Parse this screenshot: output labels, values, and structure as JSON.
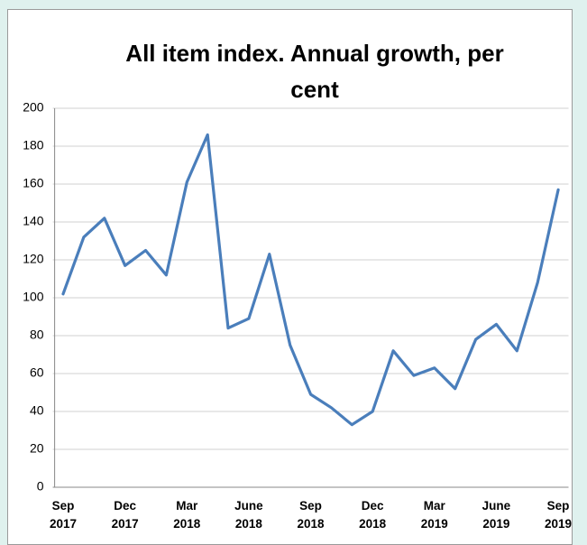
{
  "chart_data": {
    "type": "line",
    "title": "All item index. Annual growth, per cent",
    "categories": [
      "Sep 2017",
      null,
      null,
      "Dec 2017",
      null,
      null,
      "Mar 2018",
      null,
      null,
      "June 2018",
      null,
      null,
      "Sep 2018",
      null,
      null,
      "Dec 2018",
      null,
      null,
      "Mar 2019",
      null,
      null,
      "June 2019",
      null,
      null,
      "Sep 2019"
    ],
    "series": [
      {
        "name": "All item index",
        "color": "#4a7ebb",
        "values": [
          102,
          132,
          142,
          117,
          125,
          112,
          161,
          186,
          84,
          89,
          123,
          75,
          49,
          42,
          33,
          40,
          72,
          59,
          63,
          52,
          78,
          86,
          72,
          108,
          157
        ]
      }
    ],
    "ylim": [
      0,
      200
    ],
    "yticks": [
      0,
      20,
      40,
      60,
      80,
      100,
      120,
      140,
      160,
      180,
      200
    ],
    "grid": true
  }
}
